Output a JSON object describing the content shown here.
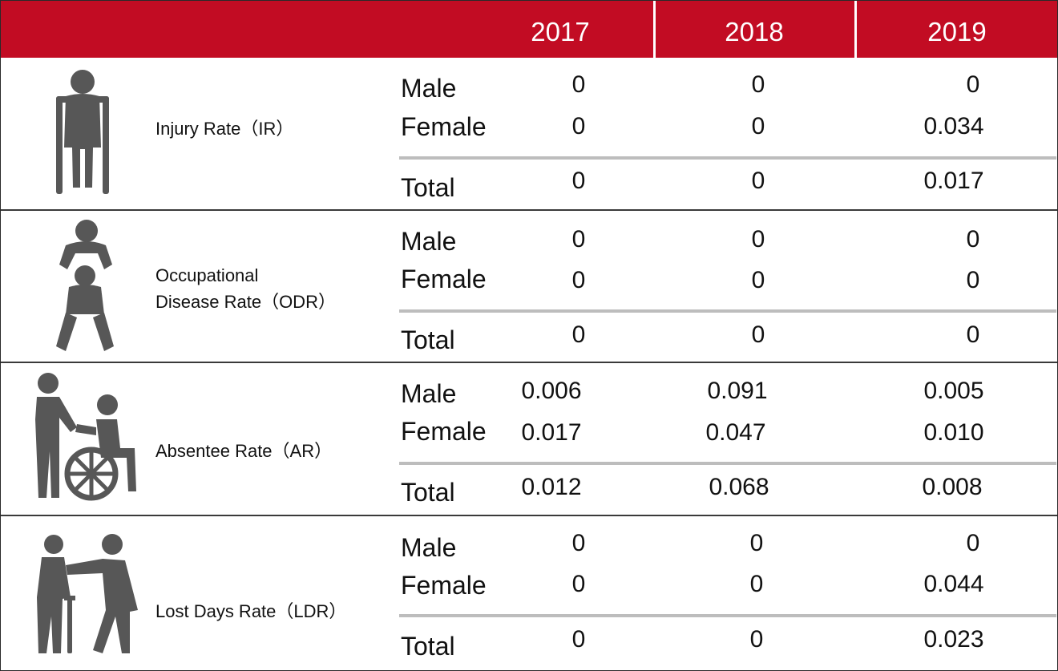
{
  "chart_data": {
    "type": "table",
    "columns": [
      "2017",
      "2018",
      "2019"
    ],
    "categories": [
      "Male",
      "Female",
      "Total"
    ],
    "rows": [
      {
        "metric_lines": [
          "Injury Rate（IR）"
        ],
        "icon": "person-with-crutches-icon",
        "values": {
          "Male": [
            "0",
            "0",
            "0"
          ],
          "Female": [
            "0",
            "0",
            "0.034"
          ],
          "Total": [
            "0",
            "0",
            "0.017"
          ]
        }
      },
      {
        "metric_lines": [
          "Occupational",
          "Disease Rate（ODR）"
        ],
        "icon": "person-carrying-patient-icon",
        "values": {
          "Male": [
            "0",
            "0",
            "0"
          ],
          "Female": [
            "0",
            "0",
            "0"
          ],
          "Total": [
            "0",
            "0",
            "0"
          ]
        }
      },
      {
        "metric_lines": [
          "Absentee Rate（AR）"
        ],
        "icon": "person-pushing-wheelchair-icon",
        "values": {
          "Male": [
            "0.006",
            "0.091",
            "0.005"
          ],
          "Female": [
            "0.017",
            "0.047",
            "0.010"
          ],
          "Total": [
            "0.012",
            "0.068",
            "0.008"
          ]
        }
      },
      {
        "metric_lines": [
          "Lost Days Rate（LDR）"
        ],
        "icon": "person-helping-elder-icon",
        "values": {
          "Male": [
            "0",
            "0",
            "0"
          ],
          "Female": [
            "0",
            "0",
            "0.044"
          ],
          "Total": [
            "0",
            "0",
            "0.023"
          ]
        }
      }
    ]
  },
  "colors": {
    "header": "#c20c23",
    "icon": "#575757",
    "divider": "#bdbdbd"
  }
}
